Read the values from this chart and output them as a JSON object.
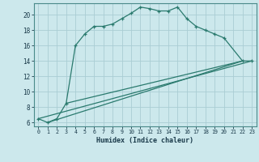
{
  "xlabel": "Humidex (Indice chaleur)",
  "bg_color": "#cce8ec",
  "grid_color": "#aacdd4",
  "line_color": "#2a7a6e",
  "xlim": [
    -0.5,
    23.5
  ],
  "ylim": [
    5.5,
    21.5
  ],
  "yticks": [
    6,
    8,
    10,
    12,
    14,
    16,
    18,
    20
  ],
  "xticks": [
    0,
    1,
    2,
    3,
    4,
    5,
    6,
    7,
    8,
    9,
    10,
    11,
    12,
    13,
    14,
    15,
    16,
    17,
    18,
    19,
    20,
    21,
    22,
    23
  ],
  "main_x": [
    0,
    1,
    2,
    3,
    4,
    5,
    6,
    7,
    8,
    9,
    10,
    11,
    12,
    13,
    14,
    15,
    16,
    17,
    18,
    19,
    20,
    22,
    23
  ],
  "main_y": [
    6.5,
    6.0,
    6.5,
    8.5,
    16.0,
    17.5,
    18.5,
    18.5,
    18.8,
    19.5,
    20.2,
    21.0,
    20.8,
    20.5,
    20.5,
    21.0,
    19.5,
    18.5,
    18.0,
    17.5,
    17.0,
    14.0,
    14.0
  ],
  "line1_x": [
    0,
    23
  ],
  "line1_y": [
    6.5,
    14.0
  ],
  "line2_x": [
    1,
    22
  ],
  "line2_y": [
    6.0,
    14.0
  ],
  "line3_x": [
    3,
    22
  ],
  "line3_y": [
    8.5,
    14.0
  ]
}
